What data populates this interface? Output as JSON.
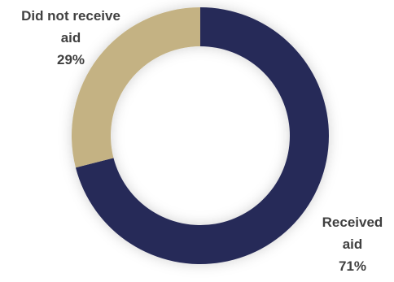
{
  "chart_data": {
    "type": "pie",
    "donut": true,
    "title": "",
    "slices": [
      {
        "name": "Did not receive aid",
        "label_lines": [
          "Did not receive",
          "aid"
        ],
        "value": 29,
        "value_label": "29%",
        "color": "#C4B283"
      },
      {
        "name": "Received aid",
        "label_lines": [
          "Received",
          "aid"
        ],
        "value": 71,
        "value_label": "71%",
        "color": "#262958"
      }
    ]
  },
  "colors": {
    "received": "#262958",
    "not_received": "#C4B283",
    "label_text": "#404040"
  }
}
